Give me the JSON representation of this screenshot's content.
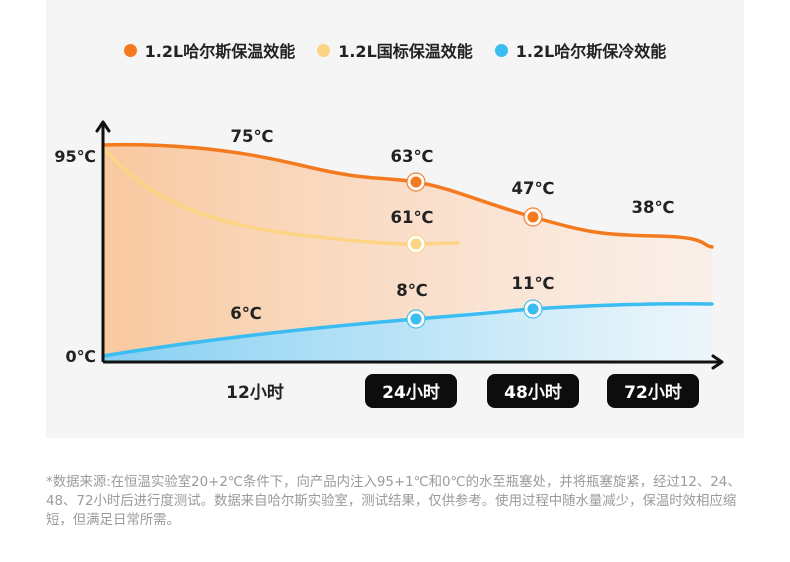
{
  "chart_data": {
    "type": "line",
    "legend_position": "top",
    "series": [
      {
        "name": "1.2L哈尔斯保温效能",
        "color": "#f47a1f",
        "values": [
          95,
          75,
          63,
          47,
          38
        ],
        "value_labels": [
          "95℃",
          "75℃",
          "63℃",
          "47℃",
          "38℃"
        ]
      },
      {
        "name": "1.2L国标保温效能",
        "color": "#fcd483",
        "values": [
          95,
          61
        ],
        "value_labels": [
          "",
          "61℃"
        ]
      },
      {
        "name": "1.2L哈尔斯保冷效能",
        "color": "#3bbdf2",
        "values": [
          0,
          6,
          8,
          11
        ],
        "value_labels": [
          "0℃",
          "6℃",
          "8℃",
          "11℃"
        ]
      }
    ],
    "x_labels": [
      "12小时",
      "24小时",
      "48小时",
      "72小时"
    ],
    "x_labels_highlighted": [
      false,
      true,
      true,
      true
    ],
    "y_tick_labels": [
      "95℃",
      "0℃"
    ]
  },
  "footnote": "*数据来源:在恒温实验室20+2℃条件下，向产品内注入95+1℃和0℃的水至瓶塞处，并将瓶塞旋紧，经过12、24、48、72小时后进行度测试。数据来自哈尔斯实验室，测试结果，仅供参考。使用过程中随水量减少，保温时效相应缩短，但满足日常所需。"
}
